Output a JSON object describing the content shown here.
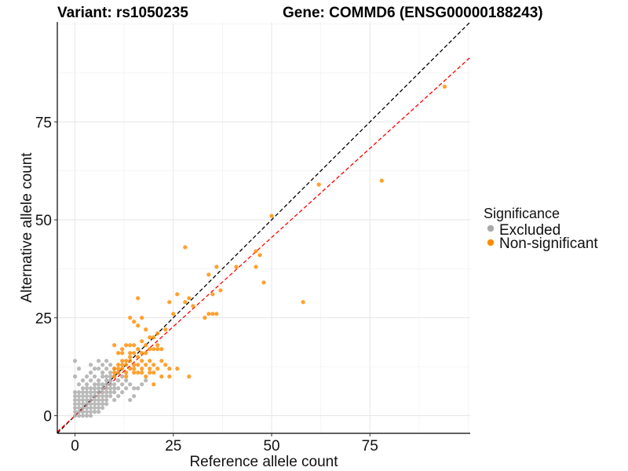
{
  "chart_data": {
    "type": "scatter",
    "title_left": "Variant: rs1050235",
    "title_right": "Gene: COMMD6 (ENSG00000188243)",
    "xlabel": "Reference allele count",
    "ylabel": "Alternative allele count",
    "xlim": [
      -4.5,
      100.5
    ],
    "ylim": [
      -4.5,
      100.5
    ],
    "x_ticks": [
      0,
      25,
      50,
      75
    ],
    "y_ticks": [
      0,
      25,
      50,
      75
    ],
    "grid": true,
    "legend": {
      "title": "Significance",
      "position": "right",
      "entries": [
        {
          "label": "Excluded",
          "color": "#aaaaaa"
        },
        {
          "label": "Non-significant",
          "color": "#ff8c00"
        }
      ]
    },
    "reference_lines": [
      {
        "name": "identity",
        "slope": 1.0,
        "intercept": 0,
        "color": "#000000",
        "dash": true
      },
      {
        "name": "fit",
        "slope": 0.91,
        "intercept": 0,
        "color": "#ff0000",
        "dash": true
      }
    ],
    "series": [
      {
        "name": "Excluded",
        "color": "#aaaaaa",
        "points": [
          [
            0,
            14
          ],
          [
            0,
            10
          ],
          [
            0,
            6
          ],
          [
            0,
            5
          ],
          [
            0,
            4
          ],
          [
            0,
            3
          ],
          [
            0,
            2
          ],
          [
            0,
            1
          ],
          [
            0,
            0
          ],
          [
            1,
            12
          ],
          [
            1,
            8
          ],
          [
            1,
            6
          ],
          [
            1,
            5
          ],
          [
            1,
            4
          ],
          [
            1,
            3
          ],
          [
            1,
            2
          ],
          [
            1,
            1
          ],
          [
            1,
            0
          ],
          [
            2,
            9
          ],
          [
            2,
            7
          ],
          [
            2,
            6
          ],
          [
            2,
            5
          ],
          [
            2,
            4
          ],
          [
            2,
            3
          ],
          [
            2,
            2
          ],
          [
            2,
            1
          ],
          [
            2,
            0
          ],
          [
            3,
            10
          ],
          [
            3,
            8
          ],
          [
            3,
            7
          ],
          [
            3,
            6
          ],
          [
            3,
            5
          ],
          [
            3,
            4
          ],
          [
            3,
            3
          ],
          [
            3,
            2
          ],
          [
            3,
            1
          ],
          [
            3,
            0
          ],
          [
            4,
            13
          ],
          [
            4,
            11
          ],
          [
            4,
            9
          ],
          [
            4,
            7
          ],
          [
            4,
            6
          ],
          [
            4,
            5
          ],
          [
            4,
            4
          ],
          [
            4,
            3
          ],
          [
            4,
            2
          ],
          [
            4,
            1
          ],
          [
            4,
            0
          ],
          [
            5,
            12
          ],
          [
            5,
            10
          ],
          [
            5,
            8
          ],
          [
            5,
            7
          ],
          [
            5,
            6
          ],
          [
            5,
            5
          ],
          [
            5,
            4
          ],
          [
            5,
            3
          ],
          [
            5,
            2
          ],
          [
            5,
            1
          ],
          [
            6,
            14
          ],
          [
            6,
            12
          ],
          [
            6,
            9
          ],
          [
            6,
            8
          ],
          [
            6,
            7
          ],
          [
            6,
            6
          ],
          [
            6,
            5
          ],
          [
            6,
            4
          ],
          [
            6,
            3
          ],
          [
            6,
            2
          ],
          [
            6,
            1
          ],
          [
            7,
            13
          ],
          [
            7,
            11
          ],
          [
            7,
            10
          ],
          [
            7,
            8
          ],
          [
            7,
            7
          ],
          [
            7,
            6
          ],
          [
            7,
            5
          ],
          [
            7,
            4
          ],
          [
            7,
            3
          ],
          [
            7,
            2
          ],
          [
            8,
            14
          ],
          [
            8,
            12
          ],
          [
            8,
            10
          ],
          [
            8,
            9
          ],
          [
            8,
            8
          ],
          [
            8,
            7
          ],
          [
            8,
            6
          ],
          [
            8,
            5
          ],
          [
            8,
            4
          ],
          [
            8,
            3
          ],
          [
            9,
            13
          ],
          [
            9,
            11
          ],
          [
            9,
            10
          ],
          [
            9,
            9
          ],
          [
            9,
            8
          ],
          [
            9,
            7
          ],
          [
            9,
            6
          ],
          [
            9,
            5
          ],
          [
            10,
            12
          ],
          [
            10,
            10
          ],
          [
            10,
            8
          ],
          [
            10,
            7
          ],
          [
            10,
            6
          ],
          [
            10,
            4
          ],
          [
            11,
            11
          ],
          [
            11,
            9
          ],
          [
            11,
            7
          ],
          [
            11,
            5
          ],
          [
            12,
            10
          ],
          [
            12,
            8
          ],
          [
            12,
            6
          ],
          [
            13,
            9
          ],
          [
            13,
            7
          ],
          [
            14,
            8
          ],
          [
            14,
            4
          ],
          [
            15,
            7
          ],
          [
            15,
            5
          ],
          [
            16,
            7
          ],
          [
            17,
            8
          ],
          [
            18,
            9
          ]
        ]
      },
      {
        "name": "Non-significant",
        "color": "#ff8c00",
        "points": [
          [
            94,
            84
          ],
          [
            78,
            60
          ],
          [
            62,
            59
          ],
          [
            58,
            29
          ],
          [
            50,
            51
          ],
          [
            48,
            34
          ],
          [
            47,
            41
          ],
          [
            46,
            42
          ],
          [
            46,
            38
          ],
          [
            41,
            38
          ],
          [
            37,
            32
          ],
          [
            36,
            38
          ],
          [
            34,
            36
          ],
          [
            35,
            31
          ],
          [
            35,
            26
          ],
          [
            34,
            26
          ],
          [
            36,
            26
          ],
          [
            33,
            25
          ],
          [
            30,
            28
          ],
          [
            29,
            30
          ],
          [
            28,
            43
          ],
          [
            28,
            29
          ],
          [
            26,
            31
          ],
          [
            25,
            26
          ],
          [
            24,
            29
          ],
          [
            23,
            22
          ],
          [
            21,
            21
          ],
          [
            22,
            17
          ],
          [
            21,
            18
          ],
          [
            20,
            20
          ],
          [
            19,
            17
          ],
          [
            19,
            20
          ],
          [
            20,
            17
          ],
          [
            18,
            22
          ],
          [
            18,
            18
          ],
          [
            17,
            19
          ],
          [
            17,
            25
          ],
          [
            16,
            30
          ],
          [
            16,
            23
          ],
          [
            15,
            24
          ],
          [
            14,
            25
          ],
          [
            15,
            18
          ],
          [
            14,
            18
          ],
          [
            13,
            18
          ],
          [
            12,
            17
          ],
          [
            11,
            16
          ],
          [
            10,
            18
          ],
          [
            12,
            16
          ],
          [
            13,
            13
          ],
          [
            14,
            14
          ],
          [
            15,
            16
          ],
          [
            16,
            15
          ],
          [
            17,
            12
          ],
          [
            18,
            13
          ],
          [
            19,
            14
          ],
          [
            20,
            11
          ],
          [
            21,
            12
          ],
          [
            22,
            10
          ],
          [
            24,
            10
          ],
          [
            26,
            12
          ],
          [
            29,
            10
          ],
          [
            18,
            10
          ],
          [
            20,
            8
          ],
          [
            10,
            12
          ],
          [
            10,
            10
          ],
          [
            11,
            11
          ],
          [
            11,
            13
          ],
          [
            12,
            12
          ],
          [
            12,
            14
          ],
          [
            13,
            11
          ],
          [
            13,
            14
          ],
          [
            14,
            12
          ],
          [
            14,
            15
          ],
          [
            15,
            12
          ],
          [
            15,
            13
          ],
          [
            16,
            13
          ],
          [
            16,
            11
          ],
          [
            17,
            14
          ],
          [
            17,
            16
          ],
          [
            10,
            11
          ],
          [
            11,
            12
          ],
          [
            12,
            13
          ],
          [
            13,
            10
          ],
          [
            14,
            16
          ],
          [
            15,
            11
          ],
          [
            16,
            17
          ],
          [
            19,
            12
          ],
          [
            20,
            13
          ],
          [
            21,
            17
          ],
          [
            22,
            14
          ],
          [
            23,
            13
          ],
          [
            24,
            12
          ],
          [
            19,
            11
          ],
          [
            18,
            16
          ],
          [
            17,
            11
          ]
        ]
      }
    ]
  }
}
